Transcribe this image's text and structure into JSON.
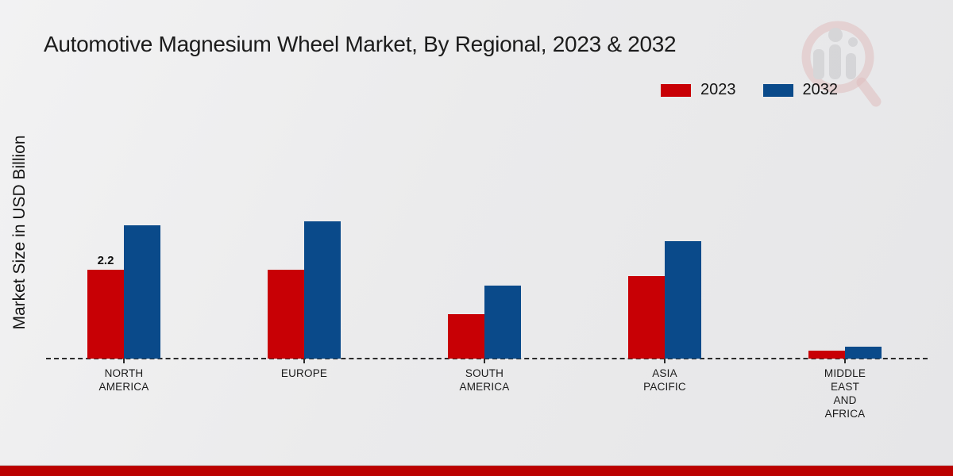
{
  "title": "Automotive Magnesium Wheel Market, By Regional, 2023 & 2032",
  "ylabel": "Market Size in USD Billion",
  "legend": [
    {
      "label": "2023",
      "color": "#c80005"
    },
    {
      "label": "2032",
      "color": "#0a4a8a"
    }
  ],
  "category_label_lines": [
    [
      "NORTH",
      "AMERICA"
    ],
    [
      "EUROPE"
    ],
    [
      "SOUTH",
      "AMERICA"
    ],
    [
      "ASIA",
      "PACIFIC"
    ],
    [
      "MIDDLE",
      "EAST",
      "AND",
      "AFRICA"
    ]
  ],
  "chart_data": {
    "type": "bar",
    "title": "Automotive Magnesium Wheel Market, By Regional, 2023 & 2032",
    "xlabel": "",
    "ylabel": "Market Size in USD Billion",
    "categories": [
      "NORTH AMERICA",
      "EUROPE",
      "SOUTH AMERICA",
      "ASIA PACIFIC",
      "MIDDLE EAST AND AFRICA"
    ],
    "series": [
      {
        "name": "2023",
        "color": "#c80005",
        "values": [
          2.2,
          2.2,
          1.1,
          2.05,
          0.2
        ]
      },
      {
        "name": "2032",
        "color": "#0a4a8a",
        "values": [
          3.3,
          3.4,
          1.8,
          2.9,
          0.3
        ]
      }
    ],
    "ylim": [
      0,
      3.6
    ],
    "grid": false,
    "baseline_style": "dashed",
    "legend_position": "top-right",
    "data_labels": [
      {
        "series": "2023",
        "category_index": 0,
        "text": "2.2"
      }
    ]
  },
  "footer": {
    "band_color": "#bb0100"
  },
  "watermark": {
    "name": "market-research-magnifier-logo"
  }
}
